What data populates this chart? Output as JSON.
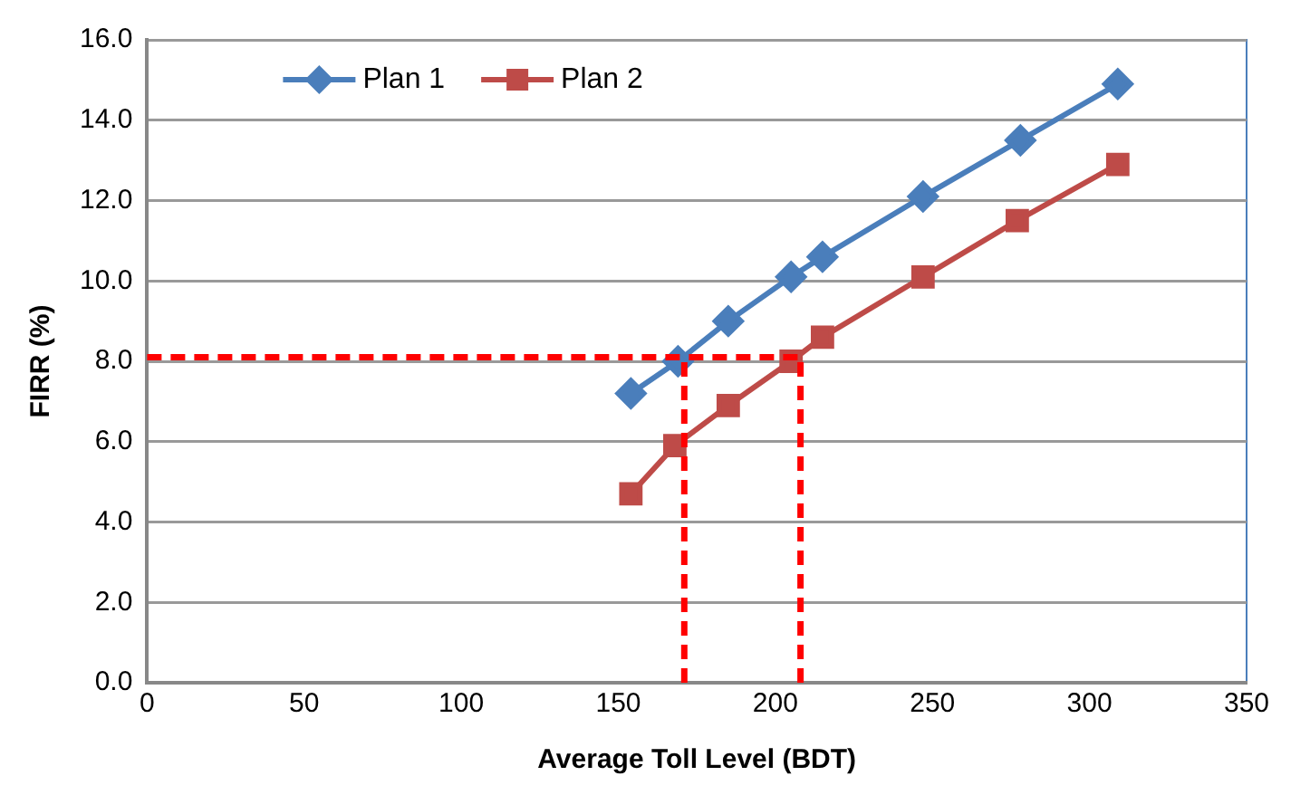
{
  "chart_data": {
    "type": "line",
    "xlabel": "Average Toll Level (BDT)",
    "ylabel": "FIRR (%)",
    "xlim": [
      0,
      350
    ],
    "xticks": [
      0,
      50,
      100,
      150,
      200,
      250,
      300,
      350
    ],
    "ylim": [
      0,
      16
    ],
    "yticks": [
      {
        "value": 0,
        "label": "0.0"
      },
      {
        "value": 2,
        "label": "2.0"
      },
      {
        "value": 4,
        "label": "4.0"
      },
      {
        "value": 6,
        "label": "6.0"
      },
      {
        "value": 8,
        "label": "8.0"
      },
      {
        "value": 10,
        "label": "10.0"
      },
      {
        "value": 12,
        "label": "12.0"
      },
      {
        "value": 14,
        "label": "14.0"
      },
      {
        "value": 16,
        "label": "16.0"
      }
    ],
    "grid": "y",
    "legend": "top left",
    "line_style": "solid",
    "series": [
      {
        "name": "Plan 1",
        "color": "#4a7ebb",
        "marker": "diamond",
        "x": [
          154,
          169,
          185,
          205,
          215,
          247,
          278,
          309
        ],
        "values": [
          7.2,
          8.0,
          9.0,
          10.1,
          10.6,
          12.1,
          13.5,
          14.9
        ]
      },
      {
        "name": "Plan 2",
        "color": "#be4b48",
        "marker": "square",
        "x": [
          154,
          168,
          185,
          205,
          215,
          247,
          277,
          309
        ],
        "values": [
          4.7,
          5.9,
          6.9,
          8.0,
          8.6,
          10.1,
          11.5,
          12.9
        ]
      }
    ],
    "ref_lines": [
      {
        "axis": "y",
        "value": 8.1,
        "color": "#ff0000",
        "line_style": "dashed"
      },
      {
        "axis": "x",
        "value": 171,
        "color": "#ff0000",
        "line_style": "dashed"
      },
      {
        "axis": "x",
        "value": 208,
        "color": "#ff0000",
        "line_style": "dashed"
      }
    ]
  }
}
